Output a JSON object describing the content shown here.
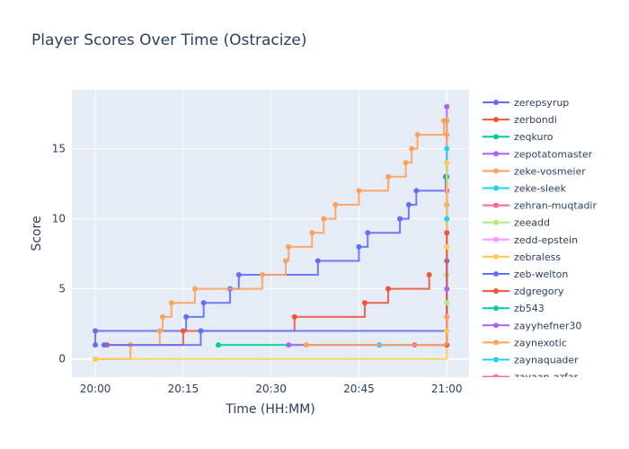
{
  "chart_data": {
    "type": "line",
    "line_shape": "step-hv",
    "title": "Player Scores Over Time (Ostracize)",
    "xlabel": "Time (HH:MM)",
    "ylabel": "Score",
    "x_unit": "minutes after 20:00",
    "xlim": [
      -4,
      63.8
    ],
    "ylim": [
      -1.3,
      19.2
    ],
    "xticks": [
      0,
      15,
      30,
      45,
      60
    ],
    "xtick_labels": [
      "20:00",
      "20:15",
      "20:30",
      "20:45",
      "21:00"
    ],
    "yticks": [
      0,
      5,
      10,
      15
    ],
    "ytick_labels": [
      "0",
      "5",
      "10",
      "15"
    ],
    "grid": true,
    "legend_position": "right",
    "series": [
      {
        "name": "zerepsyrup",
        "color": "#636efa",
        "mode": "lines+markers",
        "points": [
          [
            0,
            1
          ],
          [
            0,
            2
          ],
          [
            15.5,
            3
          ],
          [
            18.5,
            4
          ],
          [
            23,
            5
          ],
          [
            24.5,
            6
          ],
          [
            38,
            7
          ],
          [
            45,
            8
          ],
          [
            46.5,
            9
          ],
          [
            52,
            10
          ],
          [
            53.5,
            11
          ],
          [
            54.8,
            12
          ],
          [
            59.8,
            13
          ]
        ]
      },
      {
        "name": "zerbondi",
        "color": "#EF553B",
        "mode": "lines+markers",
        "points": [
          [
            2,
            1
          ],
          [
            15,
            2
          ],
          [
            34,
            3
          ],
          [
            46,
            4
          ],
          [
            50,
            5
          ],
          [
            57,
            6
          ]
        ]
      },
      {
        "name": "zeqkuro",
        "color": "#00cc96",
        "mode": "lines+markers",
        "points": [
          [
            21,
            1
          ],
          [
            60,
            13
          ]
        ]
      },
      {
        "name": "zepotatomaster",
        "color": "#ab63fa",
        "mode": "lines+markers",
        "points": [
          [
            33,
            1
          ],
          [
            60,
            18
          ]
        ]
      },
      {
        "name": "zeke-vosmeier",
        "color": "#FFA15A",
        "mode": "lines+markers",
        "points": [
          [
            0,
            0
          ],
          [
            6,
            1
          ],
          [
            11,
            2
          ],
          [
            11.5,
            3
          ],
          [
            13,
            4
          ],
          [
            17,
            5
          ],
          [
            28.5,
            6
          ],
          [
            32.5,
            7
          ],
          [
            33,
            8
          ],
          [
            37,
            9
          ],
          [
            39,
            10
          ],
          [
            41,
            11
          ],
          [
            45,
            12
          ],
          [
            50,
            13
          ],
          [
            53,
            14
          ],
          [
            54,
            15
          ],
          [
            55,
            16
          ],
          [
            59.5,
            17
          ],
          [
            60,
            17
          ],
          [
            60,
            16
          ],
          [
            60,
            11
          ],
          [
            60,
            3
          ]
        ]
      },
      {
        "name": "zeke-sleek",
        "color": "#19d3f3",
        "mode": "lines+markers",
        "points": [
          [
            48.5,
            1
          ],
          [
            60,
            15
          ]
        ]
      },
      {
        "name": "zehran-muqtadir",
        "color": "#FF6692",
        "mode": "lines+markers",
        "points": [
          [
            54.5,
            1
          ],
          [
            60,
            12
          ]
        ]
      },
      {
        "name": "zeeadd",
        "color": "#B6E880",
        "mode": "lines+markers",
        "points": [
          [
            60,
            6
          ]
        ]
      },
      {
        "name": "zedd-epstein",
        "color": "#FF97FF",
        "mode": "lines+markers",
        "points": []
      },
      {
        "name": "zebraless",
        "color": "#FECB52",
        "mode": "lines+markers",
        "points": [
          [
            0,
            0
          ],
          [
            60,
            14
          ]
        ]
      },
      {
        "name": "zeb-welton",
        "color": "#636efa",
        "mode": "lines+markers",
        "points": [
          [
            1.5,
            1
          ],
          [
            18,
            2
          ],
          [
            60,
            7
          ]
        ]
      },
      {
        "name": "zdgregory",
        "color": "#EF553B",
        "mode": "lines+markers",
        "points": [
          [
            60,
            1
          ],
          [
            60,
            9
          ]
        ]
      },
      {
        "name": "zb543",
        "color": "#00cc96",
        "mode": "lines+markers",
        "points": []
      },
      {
        "name": "zayyhefner30",
        "color": "#ab63fa",
        "mode": "lines+markers",
        "points": [
          [
            60,
            5
          ]
        ]
      },
      {
        "name": "zaynexotic",
        "color": "#FFA15A",
        "mode": "lines+markers",
        "points": [
          [
            36,
            1
          ],
          [
            60,
            3
          ]
        ]
      },
      {
        "name": "zaynaquader",
        "color": "#19d3f3",
        "mode": "lines+markers",
        "points": [
          [
            60,
            10
          ]
        ]
      },
      {
        "name": "zayaan-azfar",
        "color": "#FF6692",
        "mode": "lines+markers",
        "points": []
      }
    ],
    "extra_points_2100": [
      {
        "y": 8,
        "color": "#FECB52"
      },
      {
        "y": 4,
        "color": "#B6E880"
      },
      {
        "y": 2,
        "color": "#FECB52"
      }
    ]
  }
}
